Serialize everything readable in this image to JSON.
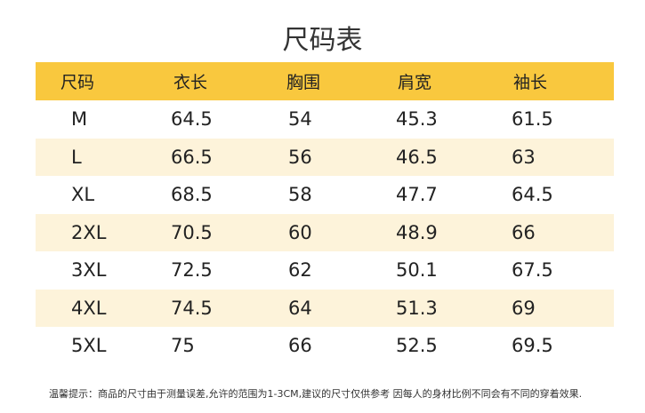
{
  "title": "尺码表",
  "table": {
    "header": [
      "尺码",
      "衣长",
      "胸围",
      "肩宽",
      "袖长"
    ],
    "rows": [
      [
        "M",
        "64.5",
        "54",
        "45.3",
        "61.5"
      ],
      [
        "L",
        "66.5",
        "56",
        "46.5",
        "63"
      ],
      [
        "XL",
        "68.5",
        "58",
        "47.7",
        "64.5"
      ],
      [
        "2XL",
        "70.5",
        "60",
        "48.9",
        "66"
      ],
      [
        "3XL",
        "72.5",
        "62",
        "50.1",
        "67.5"
      ],
      [
        "4XL",
        "74.5",
        "64",
        "51.3",
        "69"
      ],
      [
        "5XL",
        "75",
        "66",
        "52.5",
        "69.5"
      ]
    ]
  },
  "note": "温馨提示：商品的尺寸由于测量误差,允许的范围为1-3CM,建议的尺寸仅供参考 因每人的身材比例不同会有不同的穿着效果."
}
